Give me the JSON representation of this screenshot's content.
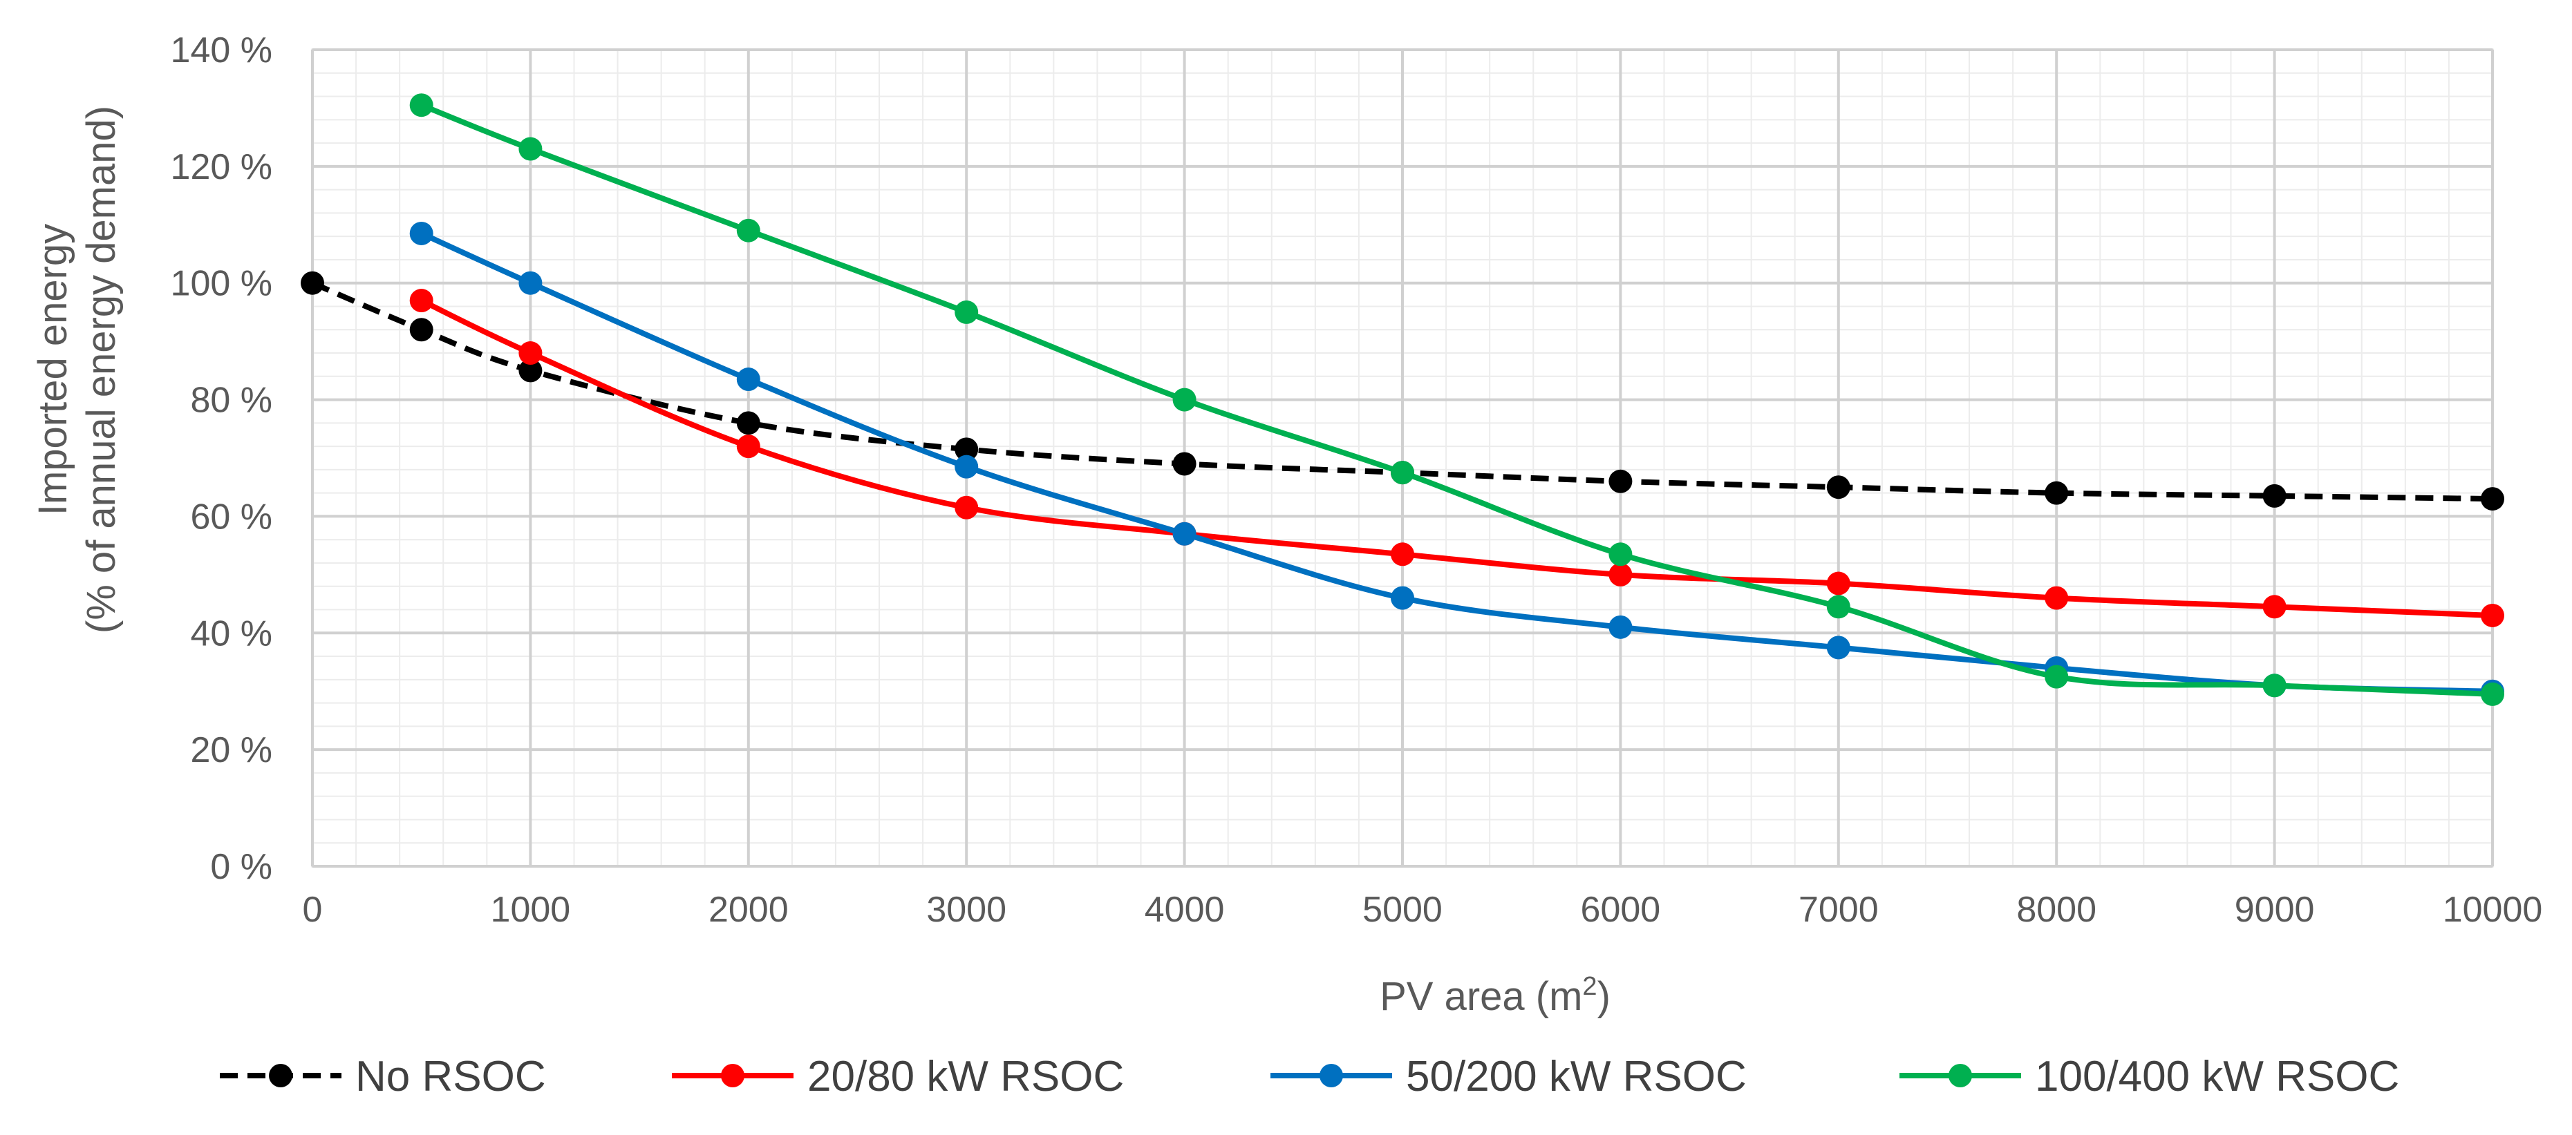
{
  "chart_data": {
    "type": "line",
    "title": "",
    "xlabel": "PV area (m",
    "xlabel_sup": "2",
    "xlabel_suffix": ")",
    "ylabel_line1": "Imported energy",
    "ylabel_line2": "(% of annual energy demand)",
    "xlim": [
      0,
      10000
    ],
    "ylim": [
      0,
      140
    ],
    "x_ticks": [
      0,
      1000,
      2000,
      3000,
      4000,
      5000,
      6000,
      7000,
      8000,
      9000,
      10000
    ],
    "x_tick_labels": [
      "0",
      "1000",
      "2000",
      "3000",
      "4000",
      "5000",
      "6000",
      "7000",
      "8000",
      "9000",
      "10000"
    ],
    "y_ticks": [
      0,
      20,
      40,
      60,
      80,
      100,
      120,
      140
    ],
    "y_tick_labels": [
      "0 %",
      "20 %",
      "40 %",
      "60 %",
      "80 %",
      "100 %",
      "120 %",
      "140 %"
    ],
    "grid": true,
    "legend_position": "bottom",
    "series": [
      {
        "name": "No RSOC",
        "color": "#000000",
        "dashed": true,
        "x": [
          0,
          500,
          1000,
          2000,
          3000,
          4000,
          5000,
          6000,
          7000,
          8000,
          9000,
          10000
        ],
        "y": [
          100,
          92,
          85,
          76,
          71.5,
          69,
          67.5,
          66,
          65,
          64,
          63.5,
          63
        ]
      },
      {
        "name": "20/80 kW RSOC",
        "color": "#ff0000",
        "dashed": false,
        "x": [
          500,
          1000,
          2000,
          3000,
          4000,
          5000,
          6000,
          7000,
          8000,
          9000,
          10000
        ],
        "y": [
          97,
          88,
          72,
          61.5,
          57,
          53.5,
          50,
          48.5,
          46,
          44.5,
          43
        ]
      },
      {
        "name": "50/200 kW RSOC",
        "color": "#0070c0",
        "dashed": false,
        "x": [
          500,
          1000,
          2000,
          3000,
          4000,
          5000,
          6000,
          7000,
          8000,
          9000,
          10000
        ],
        "y": [
          108.5,
          100,
          83.5,
          68.5,
          57,
          46,
          41,
          37.5,
          34,
          31,
          30
        ]
      },
      {
        "name": "100/400 kW RSOC",
        "color": "#00b050",
        "dashed": false,
        "x": [
          500,
          1000,
          2000,
          3000,
          4000,
          5000,
          6000,
          7000,
          8000,
          9000,
          10000
        ],
        "y": [
          130.5,
          123,
          109,
          95,
          80,
          67.5,
          53.5,
          44.5,
          32.5,
          31,
          29.5
        ]
      }
    ]
  }
}
